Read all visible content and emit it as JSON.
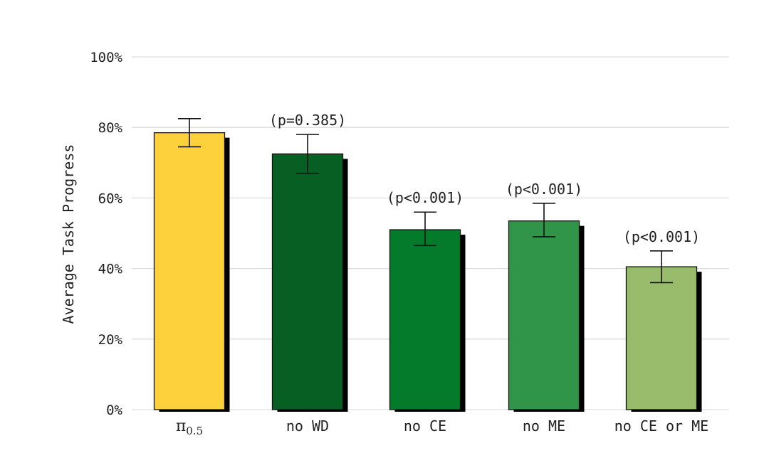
{
  "chart_data": {
    "type": "bar",
    "title": "",
    "xlabel": "",
    "ylabel": "Average Task Progress",
    "ylim": [
      0,
      100
    ],
    "yticks": [
      0,
      20,
      40,
      60,
      80,
      100
    ],
    "ytick_labels": [
      "0%",
      "20%",
      "40%",
      "60%",
      "80%",
      "100%"
    ],
    "grid": true,
    "legend": "none",
    "categories": [
      "π0.5",
      "no WD",
      "no CE",
      "no ME",
      "no CE or ME"
    ],
    "values": [
      78.5,
      72.5,
      51,
      53.5,
      40.5
    ],
    "error_low": [
      74.5,
      67,
      46.5,
      49,
      36
    ],
    "error_high": [
      82.5,
      78,
      56,
      58.5,
      45
    ],
    "annotations": [
      "",
      "(p=0.385)",
      "(p<0.001)",
      "(p<0.001)",
      "(p<0.001)"
    ],
    "colors": [
      "#fdd13c",
      "#085f23",
      "#047b2b",
      "#309548",
      "#99bb6c"
    ],
    "shadow_color": "#000000"
  }
}
